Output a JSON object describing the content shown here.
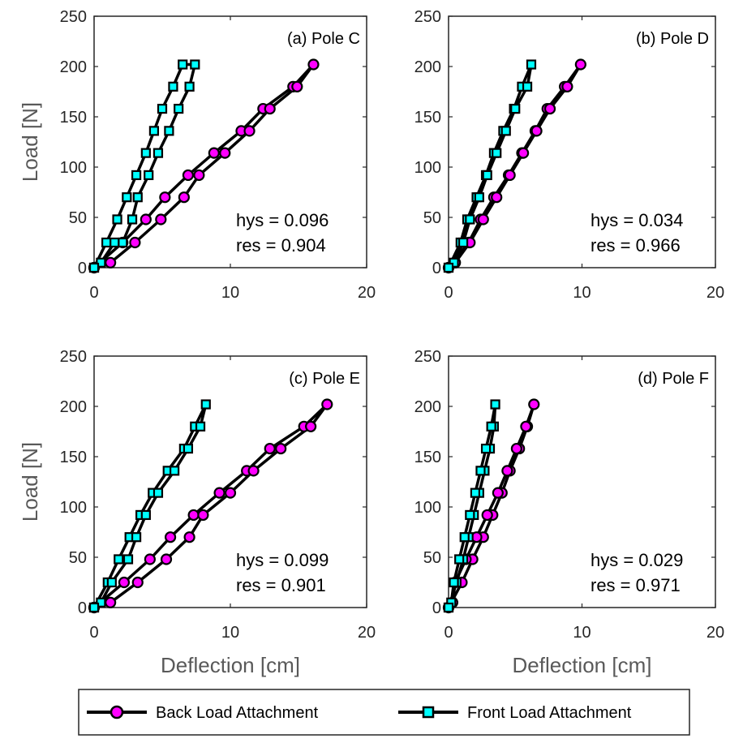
{
  "colors": {
    "back_marker": "#ff00ff",
    "front_marker": "#00ffff",
    "line": "#000000",
    "axis": "#262626"
  },
  "legend": {
    "placement": "bottom",
    "back_label": "Back Load Attachment",
    "front_label": "Front Load Attachment"
  },
  "chart_data": [
    {
      "type": "line",
      "title": "(a) Pole C",
      "xlabel": "",
      "ylabel": "Load [N]",
      "xlim": [
        0,
        20
      ],
      "ylim": [
        0,
        250
      ],
      "xticks": [
        "0",
        "10",
        "20"
      ],
      "yticks": [
        "0",
        "50",
        "100",
        "150",
        "200",
        "250"
      ],
      "grid": false,
      "annotations": [
        "hys = 0.096",
        "res = 0.904"
      ],
      "series": [
        {
          "name": "Back Load Attachment",
          "marker": "circle",
          "x": [
            0,
            2.1,
            3.8,
            5.2,
            6.9,
            8.8,
            10.8,
            12.4,
            14.6,
            16.1,
            14.9,
            12.9,
            11.4,
            9.6,
            7.7,
            6.6,
            4.9,
            3.0,
            1.2,
            0
          ],
          "y": [
            0,
            25,
            48,
            70,
            92,
            114,
            136,
            158,
            180,
            202,
            180,
            158,
            136,
            114,
            92,
            70,
            48,
            25,
            5,
            0
          ]
        },
        {
          "name": "Front Load Attachment",
          "marker": "square",
          "x": [
            0,
            0.9,
            1.7,
            2.4,
            3.1,
            3.8,
            4.4,
            5.0,
            5.8,
            6.5,
            7.4,
            7.0,
            6.2,
            5.5,
            4.7,
            4.0,
            3.2,
            2.8,
            2.1,
            1.5,
            0.5,
            0
          ],
          "y": [
            0,
            25,
            48,
            70,
            92,
            114,
            136,
            158,
            180,
            202,
            202,
            180,
            158,
            136,
            114,
            92,
            70,
            48,
            25,
            25,
            5,
            0
          ]
        }
      ]
    },
    {
      "type": "line",
      "title": "(b) Pole  D",
      "xlabel": "",
      "ylabel": "",
      "xlim": [
        0,
        20
      ],
      "ylim": [
        0,
        250
      ],
      "xticks": [
        "0",
        "10",
        "20"
      ],
      "yticks": [
        "0",
        "50",
        "100",
        "150",
        "200",
        "250"
      ],
      "grid": false,
      "annotations": [
        "hys = 0.034",
        "res = 0.966"
      ],
      "series": [
        {
          "name": "Back Load Attachment",
          "marker": "circle",
          "x": [
            0,
            1.5,
            2.4,
            3.4,
            4.5,
            5.5,
            6.5,
            7.4,
            8.7,
            9.9,
            8.9,
            7.6,
            6.6,
            5.6,
            4.6,
            3.6,
            2.6,
            1.6,
            0.5,
            0
          ],
          "y": [
            0,
            25,
            48,
            70,
            92,
            114,
            136,
            158,
            180,
            202,
            180,
            158,
            136,
            114,
            92,
            70,
            48,
            25,
            5,
            0
          ]
        },
        {
          "name": "Front Load Attachment",
          "marker": "square",
          "x": [
            0,
            0.9,
            1.4,
            2.1,
            2.8,
            3.4,
            4.1,
            4.9,
            5.5,
            6.2,
            5.9,
            5.0,
            4.3,
            3.6,
            2.9,
            2.3,
            1.6,
            1.1,
            0.4,
            0
          ],
          "y": [
            0,
            25,
            48,
            70,
            92,
            114,
            136,
            158,
            180,
            202,
            180,
            158,
            136,
            114,
            92,
            70,
            48,
            25,
            5,
            0
          ]
        }
      ]
    },
    {
      "type": "line",
      "title": "(c) Pole  E",
      "xlabel": "Deflection [cm]",
      "ylabel": "Load [N]",
      "xlim": [
        0,
        20
      ],
      "ylim": [
        0,
        250
      ],
      "xticks": [
        "0",
        "10",
        "20"
      ],
      "yticks": [
        "0",
        "50",
        "100",
        "150",
        "200",
        "250"
      ],
      "grid": false,
      "annotations": [
        "hys = 0.099",
        "res = 0.901"
      ],
      "series": [
        {
          "name": "Back Load Attachment",
          "marker": "circle",
          "x": [
            0,
            2.2,
            4.1,
            5.6,
            7.3,
            9.2,
            11.2,
            12.9,
            15.4,
            17.1,
            15.9,
            13.7,
            11.7,
            10.0,
            8.0,
            7.0,
            5.3,
            3.2,
            1.2,
            0
          ],
          "y": [
            0,
            25,
            48,
            70,
            92,
            114,
            136,
            158,
            180,
            202,
            180,
            158,
            136,
            114,
            92,
            70,
            48,
            25,
            5,
            0
          ]
        },
        {
          "name": "Front Load Attachment",
          "marker": "square",
          "x": [
            0,
            1.0,
            1.8,
            2.6,
            3.4,
            4.3,
            5.4,
            6.6,
            7.4,
            8.2,
            7.8,
            6.9,
            5.9,
            4.7,
            3.8,
            3.1,
            2.5,
            1.3,
            0.5,
            0
          ],
          "y": [
            0,
            25,
            48,
            70,
            92,
            114,
            136,
            158,
            180,
            202,
            180,
            158,
            136,
            114,
            92,
            70,
            48,
            25,
            5,
            0
          ]
        }
      ]
    },
    {
      "type": "line",
      "title": "(d) Pole  F",
      "xlabel": "Deflection [cm]",
      "ylabel": "",
      "xlim": [
        0,
        20
      ],
      "ylim": [
        0,
        250
      ],
      "xticks": [
        "0",
        "10",
        "20"
      ],
      "yticks": [
        "0",
        "50",
        "100",
        "150",
        "200",
        "250"
      ],
      "grid": false,
      "annotations": [
        "hys = 0.029",
        "res = 0.971"
      ],
      "series": [
        {
          "name": "Back Load Attachment",
          "marker": "circle",
          "x": [
            0,
            1.0,
            1.8,
            2.6,
            3.3,
            4.0,
            4.6,
            5.3,
            5.9,
            6.4,
            5.8,
            5.1,
            4.4,
            3.7,
            2.9,
            2.1,
            1.3,
            0.5,
            0.3,
            0
          ],
          "y": [
            0,
            25,
            48,
            70,
            92,
            114,
            136,
            158,
            180,
            202,
            180,
            158,
            136,
            114,
            92,
            70,
            48,
            25,
            5,
            0
          ]
        },
        {
          "name": "Front Load Attachment",
          "marker": "square",
          "x": [
            0,
            0.6,
            1.1,
            1.5,
            1.9,
            2.3,
            2.7,
            3.1,
            3.4,
            3.5,
            3.2,
            2.8,
            2.4,
            2.0,
            1.6,
            1.2,
            0.8,
            0.4,
            0.2,
            0
          ],
          "y": [
            0,
            25,
            48,
            70,
            92,
            114,
            136,
            158,
            180,
            202,
            180,
            158,
            136,
            114,
            92,
            70,
            48,
            25,
            5,
            0
          ]
        }
      ]
    }
  ]
}
